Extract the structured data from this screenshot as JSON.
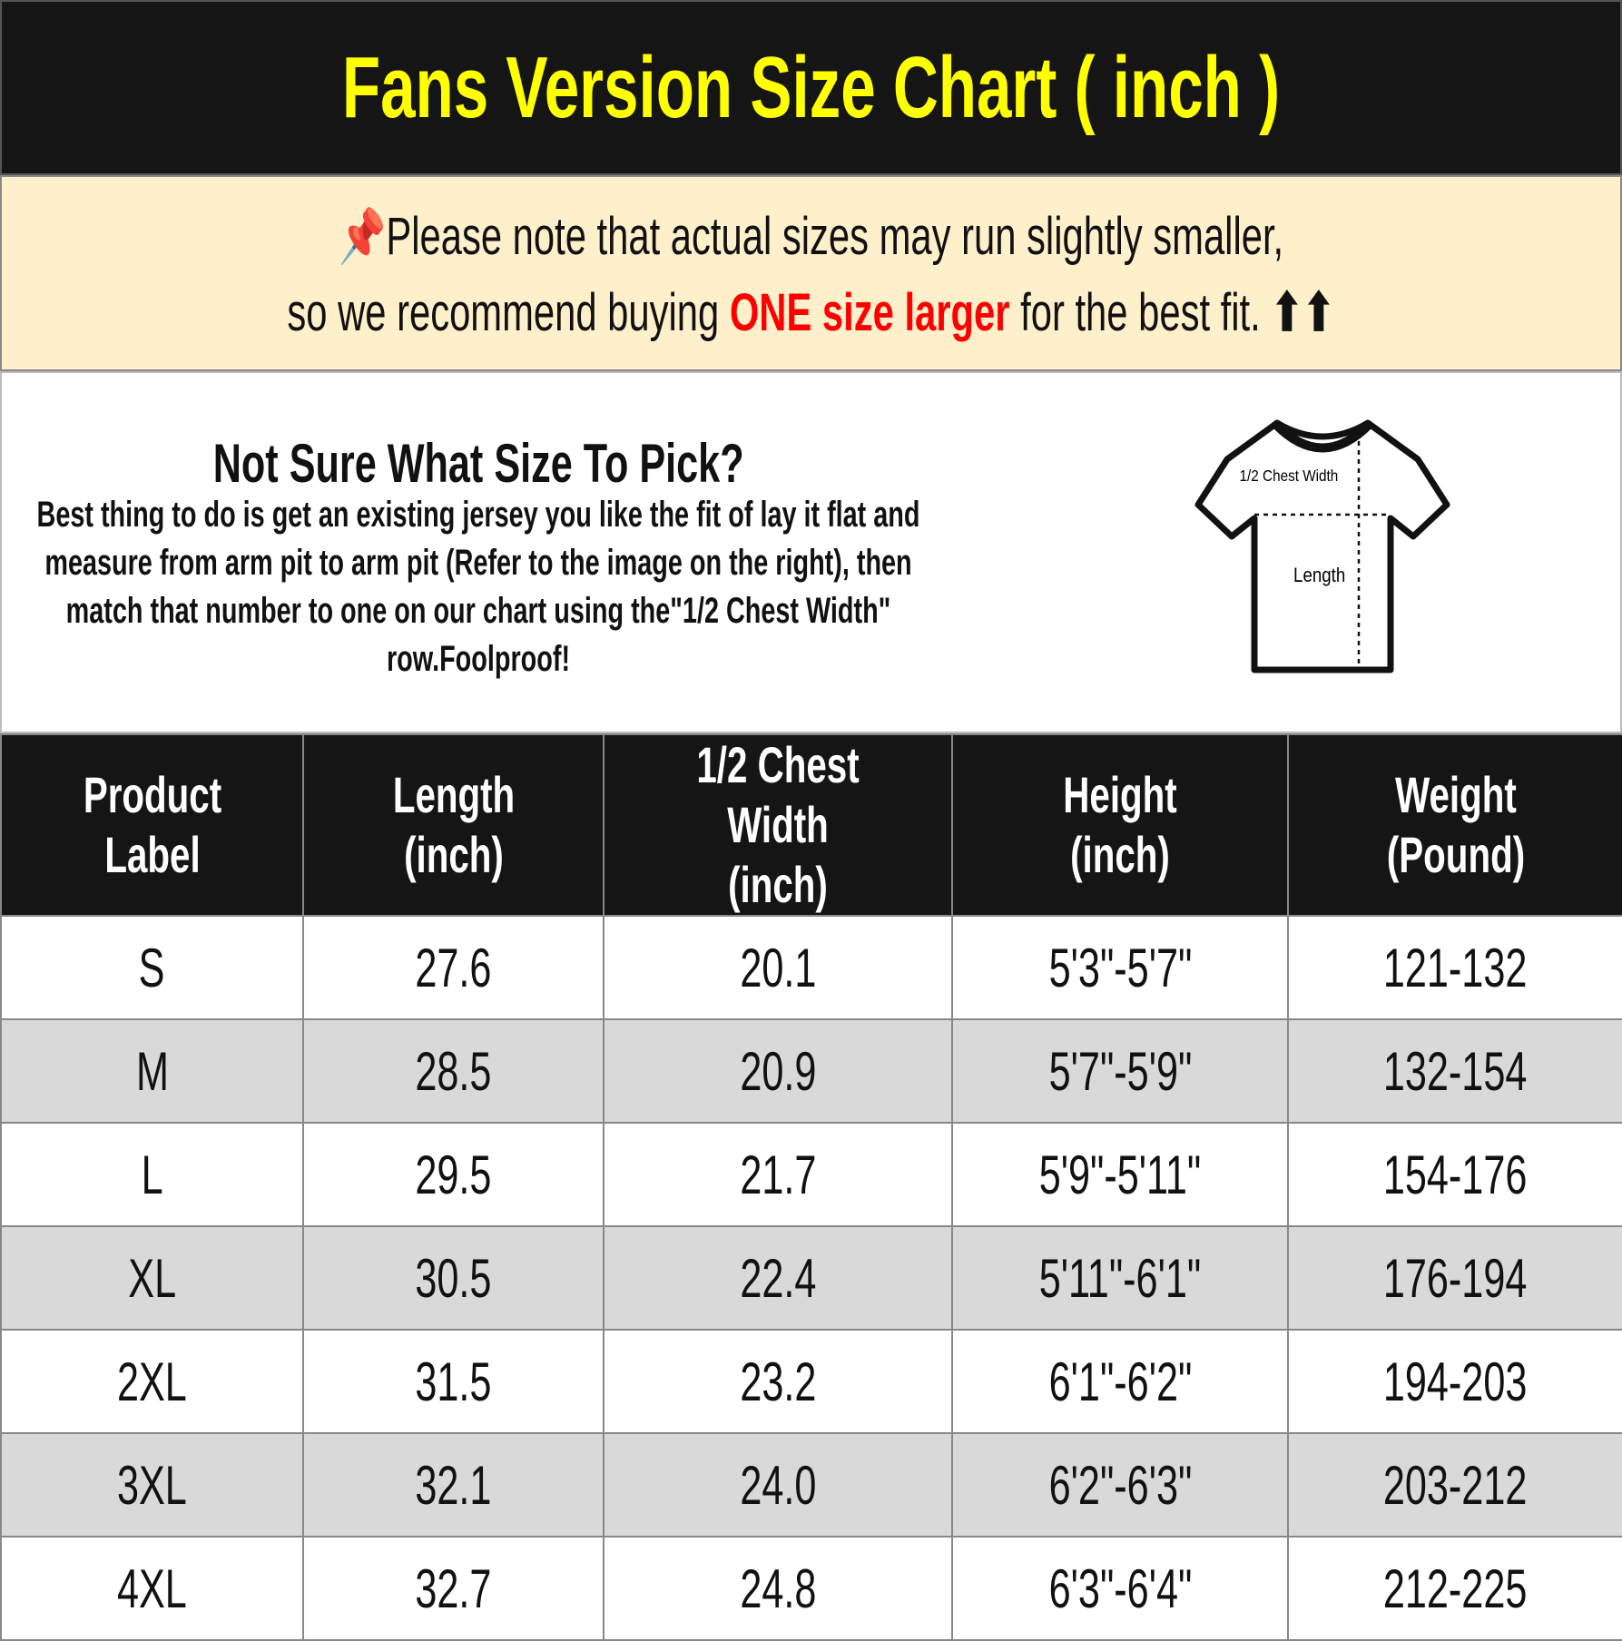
{
  "title": "Fans Version Size Chart ( inch )",
  "note": {
    "icon": "pushpin-icon",
    "line1": "Please note that actual sizes may run slightly smaller,",
    "line2_before": "so we recommend buying ",
    "line2_highlight": "ONE size larger",
    "line2_after": " for the best fit.",
    "arrows": "⬆⬆",
    "highlight_color": "#ff0000"
  },
  "info": {
    "heading": "Not Sure What Size To Pick?",
    "body": "Best thing to do is get an existing jersey you like the fit of lay it flat and measure from arm pit to arm pit (Refer to the image on the right), then match that number to one on our chart using the\"1/2 Chest Width\" row.Foolproof!",
    "diagram": {
      "chest_label": "1/2 Chest Width",
      "length_label": "Length"
    }
  },
  "table": {
    "headers": [
      "Product Label",
      "Length (inch)",
      "1/2 Chest Width (inch)",
      "Height (inch)",
      "Weight (Pound)"
    ],
    "rows": [
      [
        "S",
        "27.6",
        "20.1",
        "5'3\"-5'7\"",
        "121-132"
      ],
      [
        "M",
        "28.5",
        "20.9",
        "5'7\"-5'9\"",
        "132-154"
      ],
      [
        "L",
        "29.5",
        "21.7",
        "5'9\"-5'11\"",
        "154-176"
      ],
      [
        "XL",
        "30.5",
        "22.4",
        "5'11\"-6'1\"",
        "176-194"
      ],
      [
        "2XL",
        "31.5",
        "23.2",
        "6'1\"-6'2\"",
        "194-203"
      ],
      [
        "3XL",
        "32.1",
        "24.0",
        "6'2\"-6'3\"",
        "203-212"
      ],
      [
        "4XL",
        "32.7",
        "24.8",
        "6'3\"-6'4\"",
        "212-225"
      ]
    ]
  },
  "colors": {
    "title": "#ffff00",
    "header_bg": "#151515",
    "note_bg": "#fff0cc",
    "alt_row": "#d9d9d9"
  }
}
